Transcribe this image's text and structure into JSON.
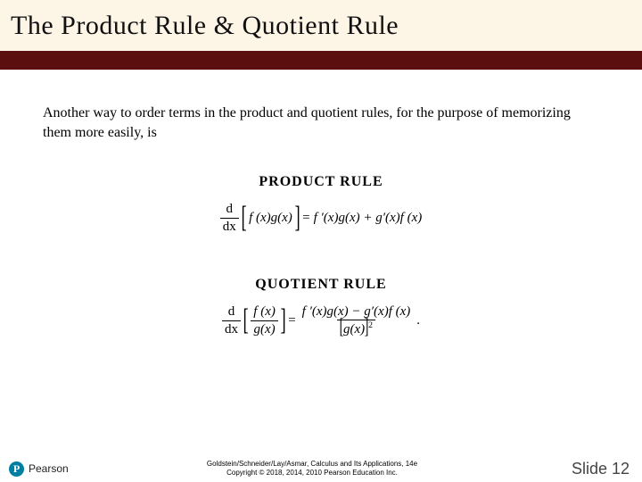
{
  "colors": {
    "title_bg": "#fdf5e6",
    "accent": "#5b0f0f",
    "page_bg": "#ffffff",
    "logo_bg": "#007fa3",
    "text": "#000000"
  },
  "header": {
    "title": "The Product Rule & Quotient Rule"
  },
  "content": {
    "intro": "Another way to order terms in the product and quotient rules, for the purpose of memorizing them more easily, is",
    "product_label": "PRODUCT  RULE",
    "quotient_label": "QUOTIENT  RULE",
    "product_formula": {
      "lhs_ddx_num": "d",
      "lhs_ddx_den": "dx",
      "inside": "f (x)g(x)",
      "rhs": "f ′(x)g(x) + g′(x)f (x)"
    },
    "quotient_formula": {
      "lhs_ddx_num": "d",
      "lhs_ddx_den": "dx",
      "inner_num": "f (x)",
      "inner_den": "g(x)",
      "rhs_num": "f ′(x)g(x) − g′(x)f (x)",
      "rhs_den_base": "g(x)",
      "rhs_den_exp": "2",
      "period": "."
    }
  },
  "footer": {
    "logo_letter": "P",
    "logo_text": "Pearson",
    "credit_line1": "Goldstein/Schneider/Lay/Asmar, Calculus and Its Applications, 14e",
    "credit_line2": "Copyright © 2018, 2014, 2010 Pearson Education Inc.",
    "slide_label": "Slide 12"
  }
}
